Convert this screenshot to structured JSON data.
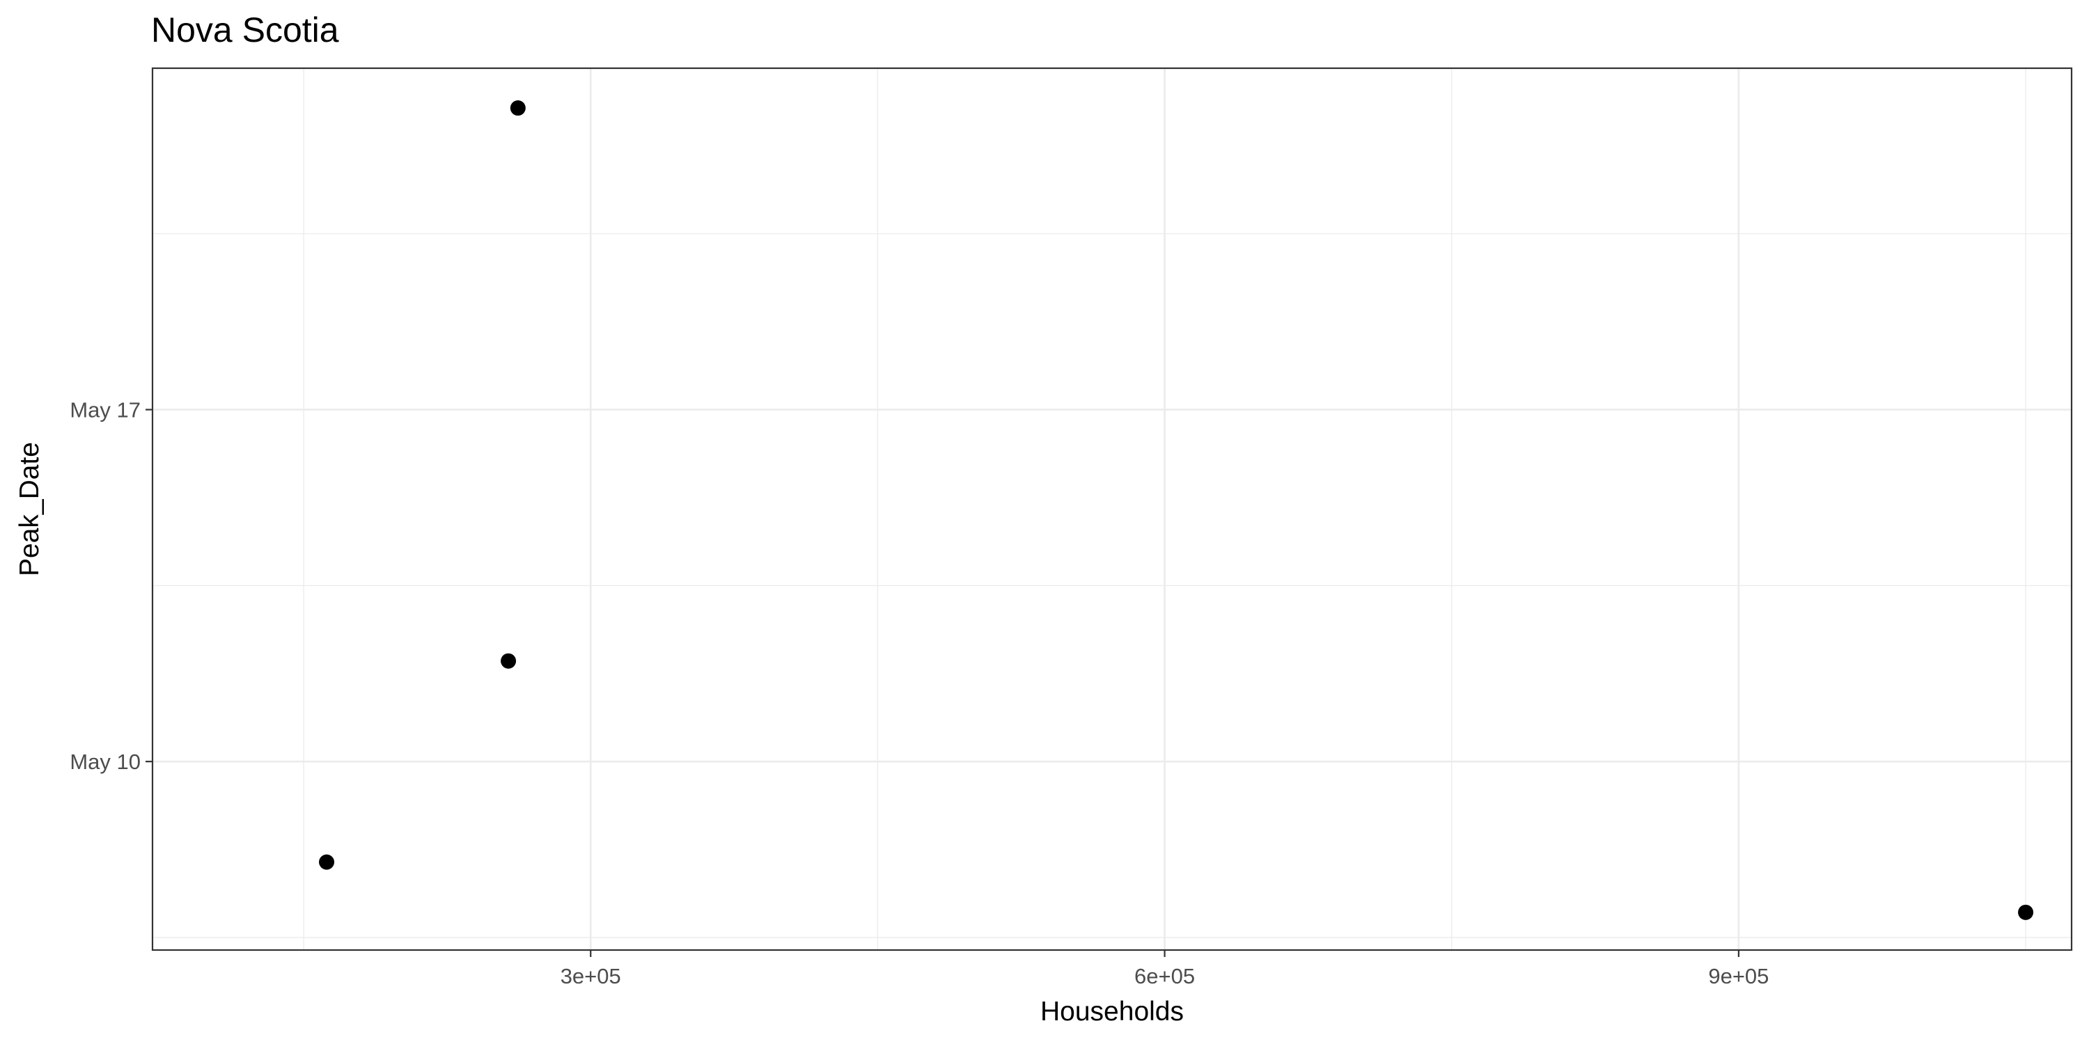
{
  "chart_data": {
    "type": "scatter",
    "title": "Nova Scotia",
    "xlabel": "Households",
    "ylabel": "Peak_Date",
    "x_ticks": [
      {
        "value": 300000,
        "label": "3e+05"
      },
      {
        "value": 600000,
        "label": "6e+05"
      },
      {
        "value": 900000,
        "label": "9e+05"
      }
    ],
    "y_ticks": [
      {
        "value": "2020-05-10",
        "label": "May 10"
      },
      {
        "value": "2020-05-17",
        "label": "May 17"
      }
    ],
    "x_minor_ticks": [
      150000,
      450000,
      750000,
      1050000
    ],
    "y_minor_ticks": [
      "2020-05-06 12:00",
      "2020-05-13 12:00",
      "2020-05-20 12:00"
    ],
    "xlim": [
      71000,
      1074000
    ],
    "ylim": [
      "2020-05-06 06:00",
      "2020-05-23 19:00"
    ],
    "points": [
      {
        "x": 162000,
        "y": "2020-05-08"
      },
      {
        "x": 257000,
        "y": "2020-05-12"
      },
      {
        "x": 262000,
        "y": "2020-05-23"
      },
      {
        "x": 1050000,
        "y": "2020-05-07"
      }
    ],
    "grid": true,
    "legend": "none",
    "colors": {
      "point": "#000000",
      "grid": "#ebebeb",
      "border": "#333333",
      "tick_label": "#4d4d4d"
    }
  }
}
